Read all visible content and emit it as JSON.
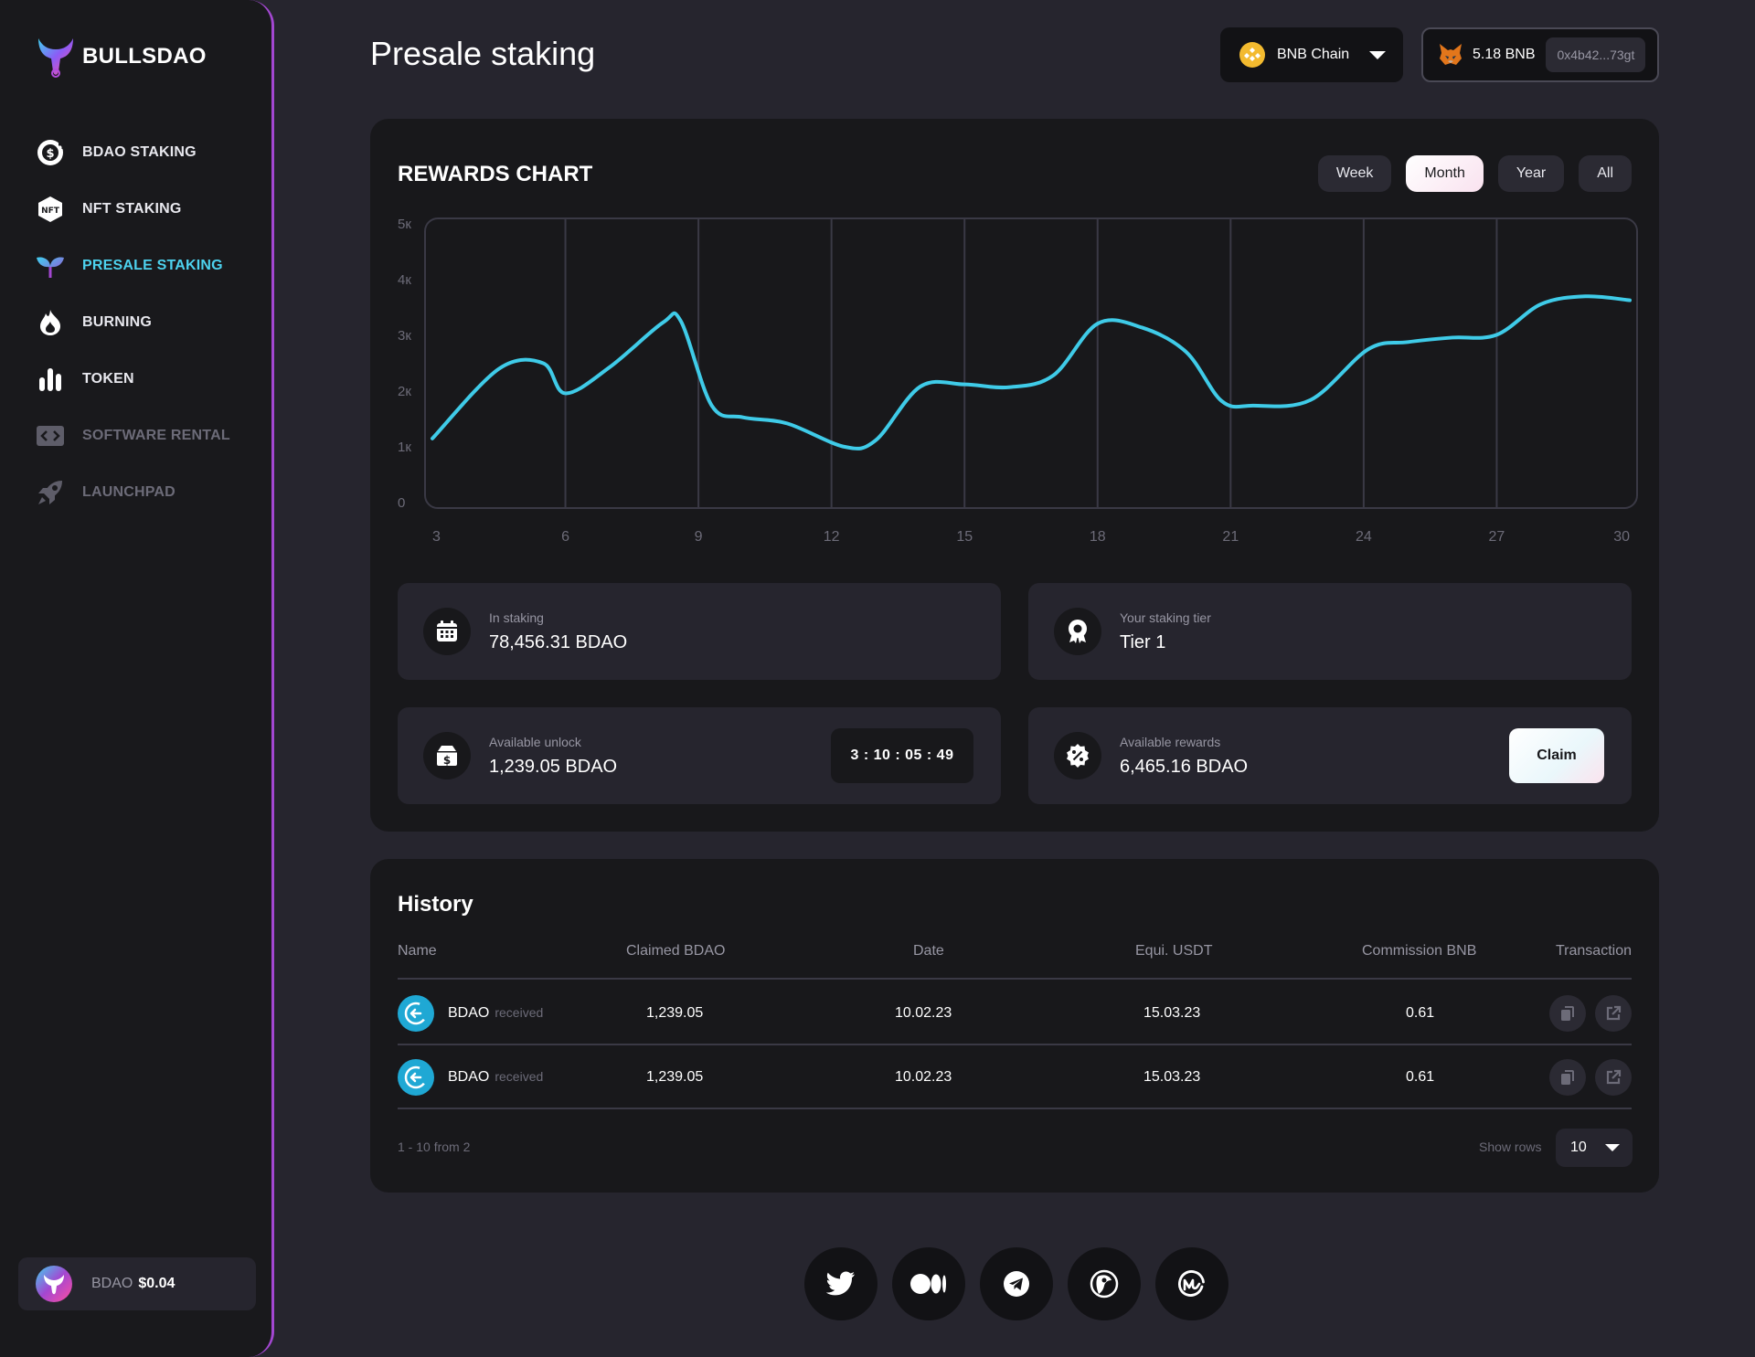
{
  "brand": {
    "name": "BULLSDAO"
  },
  "sidebar": {
    "items": [
      {
        "label": "BDAO STAKING",
        "icon": "dollar-coin-icon",
        "state": "normal"
      },
      {
        "label": "NFT STAKING",
        "icon": "nft-hexagon-icon",
        "state": "normal"
      },
      {
        "label": "PRESALE STAKING",
        "icon": "sprout-icon",
        "state": "active"
      },
      {
        "label": "BURNING",
        "icon": "flame-icon",
        "state": "normal"
      },
      {
        "label": "TOKEN",
        "icon": "bar-chart-icon",
        "state": "normal"
      },
      {
        "label": "SOFTWARE RENTAL",
        "icon": "code-window-icon",
        "state": "disabled"
      },
      {
        "label": "LAUNCHPAD",
        "icon": "rocket-icon",
        "state": "disabled"
      }
    ],
    "price": {
      "token": "BDAO",
      "value": "$0.04"
    }
  },
  "header": {
    "title": "Presale staking",
    "chain": {
      "label": "BNB Chain",
      "icon": "bnb-coin-icon"
    },
    "wallet": {
      "balance": "5.18 BNB",
      "address": "0x4b42...73gt",
      "icon": "metamask-fox-icon"
    }
  },
  "rewards": {
    "title": "REWARDS CHART",
    "ranges": [
      "Week",
      "Month",
      "Year",
      "All"
    ],
    "active_range": "Month"
  },
  "chart_data": {
    "type": "line",
    "title": "REWARDS CHART",
    "x_ticks": [
      "3",
      "6",
      "9",
      "12",
      "15",
      "18",
      "21",
      "24",
      "27",
      "30"
    ],
    "y_ticks": [
      "0",
      "1к",
      "2к",
      "3к",
      "4к",
      "5к"
    ],
    "ylim": [
      0,
      5000
    ],
    "xlim": [
      3,
      30
    ],
    "grid": "vertical",
    "color": "#3fcbe8",
    "x": [
      3,
      4.5,
      5.5,
      6,
      7,
      8.2,
      8.6,
      9.3,
      10,
      11,
      12.3,
      13,
      14,
      15,
      16,
      17,
      18,
      19,
      20,
      20.8,
      21.5,
      22.8,
      24.1,
      25,
      26,
      27,
      28,
      29,
      30
    ],
    "y": [
      1150,
      2400,
      2500,
      1960,
      2430,
      3230,
      3260,
      1740,
      1530,
      1420,
      1000,
      1120,
      2080,
      2120,
      2070,
      2280,
      3210,
      3140,
      2700,
      1820,
      1740,
      1840,
      2750,
      2880,
      2960,
      3010,
      3560,
      3700,
      3630
    ]
  },
  "stats": {
    "in_staking": {
      "label": "In staking",
      "value": "78,456.31 BDAO",
      "icon": "calendar-icon"
    },
    "tier": {
      "label": "Your staking tier",
      "value": "Tier 1",
      "icon": "award-ribbon-icon"
    },
    "unlock": {
      "label": "Available unlock",
      "value": "1,239.05 BDAO",
      "icon": "dollar-box-icon",
      "timer": "3 : 10 : 05 : 49"
    },
    "rewards": {
      "label": "Available rewards",
      "value": "6,465.16 BDAO",
      "icon": "percent-badge-icon",
      "claim": "Claim"
    }
  },
  "history": {
    "title": "History",
    "columns": [
      "Name",
      "Claimed BDAO",
      "Date",
      "Equi. USDT",
      "Commission BNB",
      "Transaction"
    ],
    "rows": [
      {
        "name": "BDAO",
        "sub": "received",
        "claimed": "1,239.05",
        "date": "10.02.23",
        "usdt": "15.03.23",
        "commission": "0.61"
      },
      {
        "name": "BDAO",
        "sub": "received",
        "claimed": "1,239.05",
        "date": "10.02.23",
        "usdt": "15.03.23",
        "commission": "0.61"
      }
    ],
    "pager": "1 - 10 from 2",
    "rows_label": "Show rows",
    "rows_value": "10"
  },
  "socials": [
    "twitter-icon",
    "medium-icon",
    "telegram-icon",
    "coingecko-icon",
    "coinmarketcap-icon"
  ],
  "colors": {
    "accent": "#4dd2ee",
    "sidebar_border": "#a347d1",
    "row_icon": "#1fa8d4"
  }
}
